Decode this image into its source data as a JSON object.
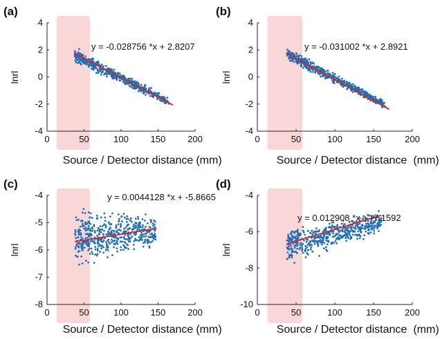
{
  "colors": {
    "points": "#1f6fb8",
    "fit": "#d62728",
    "highlight": "#f6b6b6",
    "axis": "#222222"
  },
  "chart_data": [
    {
      "panel": "(a)",
      "type": "scatter",
      "xlabel": "Source / Detector distance",
      "xunit": "(mm)",
      "ylabel": "lnrl",
      "xlim": [
        0,
        200
      ],
      "ylim": [
        -4,
        4
      ],
      "xticks": [
        0,
        50,
        100,
        150,
        200
      ],
      "yticks": [
        -4,
        -2,
        0,
        2,
        4
      ],
      "highlight": [
        13,
        58
      ],
      "equation": "y = -0.028756 *x + 2.8207",
      "fit": {
        "slope": -0.028756,
        "intercept": 2.8207,
        "x": [
          38,
          170
        ]
      },
      "scatter": {
        "x": [
          38,
          165
        ],
        "ylo": [
          0.9,
          -2.2
        ],
        "yhi": [
          2.3,
          -1.5
        ],
        "spread": 0.45
      }
    },
    {
      "panel": "(b)",
      "type": "scatter",
      "xlabel": "Source / Detector distance",
      "xunit": "(mm)",
      "ylabel": "lnrl",
      "xlim": [
        0,
        200
      ],
      "ylim": [
        -4,
        4
      ],
      "xticks": [
        0,
        50,
        100,
        150,
        200
      ],
      "yticks": [
        -4,
        -2,
        0,
        2,
        4
      ],
      "highlight": [
        13,
        58
      ],
      "equation": "y = -0.031002 *x + 2.8921",
      "fit": {
        "slope": -0.031002,
        "intercept": 2.8921,
        "x": [
          38,
          170
        ]
      },
      "scatter": {
        "x": [
          38,
          165
        ],
        "ylo": [
          1.1,
          -2.4
        ],
        "yhi": [
          2.3,
          -1.7
        ],
        "spread": 0.35
      }
    },
    {
      "panel": "(c)",
      "type": "scatter",
      "xlabel": "Source / Detector distance",
      "xunit": "(mm)",
      "ylabel": "lnrl",
      "xlim": [
        0,
        200
      ],
      "ylim": [
        -8,
        -4
      ],
      "xticks": [
        0,
        50,
        100,
        150,
        200
      ],
      "yticks": [
        -8,
        -7,
        -6,
        -5,
        -4
      ],
      "highlight": [
        13,
        58
      ],
      "equation": "y = 0.0044128 *x + -5.8665",
      "fit": {
        "slope": 0.0044128,
        "intercept": -5.8665,
        "x": [
          38,
          148
        ]
      },
      "scatter": {
        "x": [
          38,
          148
        ],
        "ylo": [
          -6.8,
          -6.0
        ],
        "yhi": [
          -4.3,
          -4.6
        ],
        "spread": 0.8
      }
    },
    {
      "panel": "(d)",
      "type": "scatter",
      "xlabel": "Source / Detector distance",
      "xunit": "(mm)",
      "ylabel": "lnrl",
      "xlim": [
        0,
        200
      ],
      "ylim": [
        -10,
        -4
      ],
      "xticks": [
        0,
        50,
        100,
        150,
        200
      ],
      "yticks": [
        -10,
        -8,
        -6,
        -4
      ],
      "highlight": [
        13,
        58
      ],
      "equation": "y = 0.012908 *x + -7.1592",
      "fit": {
        "slope": 0.012908,
        "intercept": -7.1592,
        "x": [
          38,
          160
        ]
      },
      "scatter": {
        "x": [
          38,
          160
        ],
        "ylo": [
          -8.0,
          -6.2
        ],
        "yhi": [
          -5.6,
          -4.8
        ],
        "spread": 1.0
      }
    }
  ]
}
